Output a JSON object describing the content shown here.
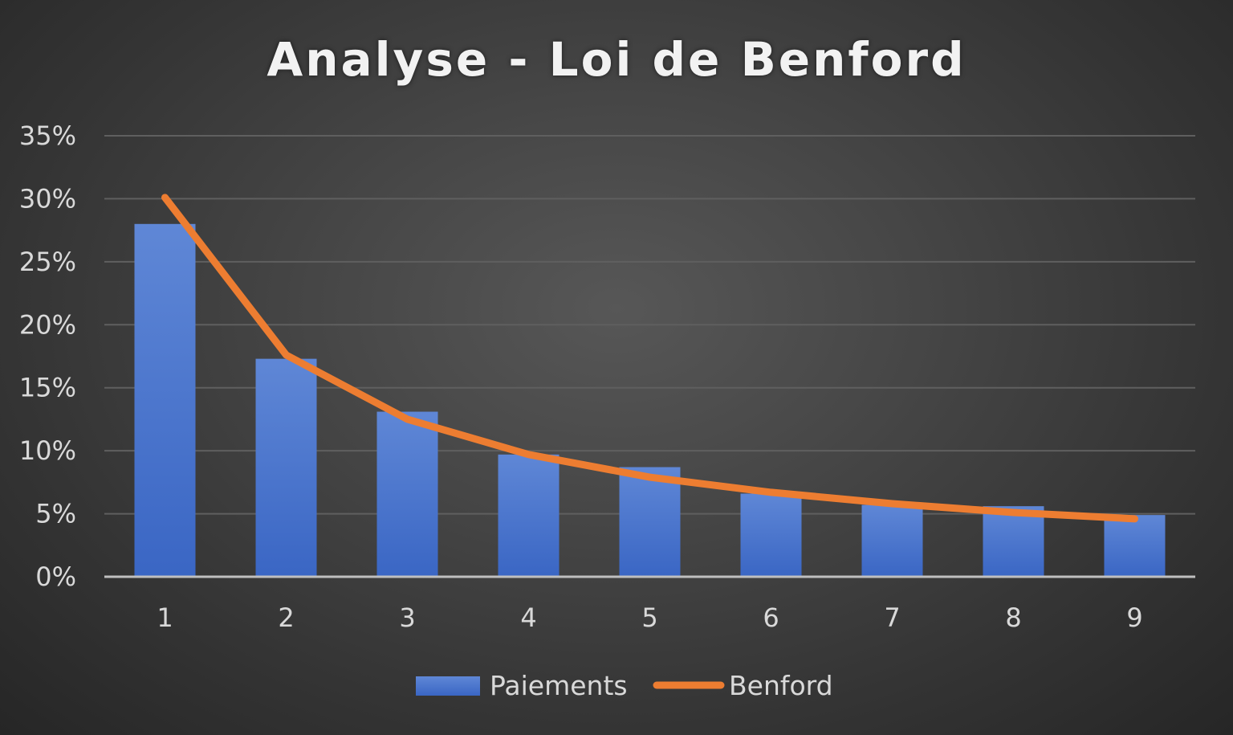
{
  "chart_data": {
    "type": "bar",
    "title": "Analyse - Loi de Benford",
    "categories": [
      "1",
      "2",
      "3",
      "4",
      "5",
      "6",
      "7",
      "8",
      "9"
    ],
    "series": [
      {
        "name": "Paiements",
        "type": "bar",
        "values": [
          0.28,
          0.173,
          0.131,
          0.097,
          0.087,
          0.066,
          0.057,
          0.056,
          0.049
        ],
        "color": "#4472c4"
      },
      {
        "name": "Benford",
        "type": "line",
        "values": [
          0.301,
          0.176,
          0.125,
          0.097,
          0.079,
          0.067,
          0.058,
          0.051,
          0.046
        ],
        "color": "#ed7d31"
      }
    ],
    "ylim": [
      0,
      0.35
    ],
    "yticks": [
      0,
      0.05,
      0.1,
      0.15,
      0.2,
      0.25,
      0.3,
      0.35
    ],
    "ytick_labels": [
      "0%",
      "5%",
      "10%",
      "15%",
      "20%",
      "25%",
      "30%",
      "35%"
    ],
    "grid": true,
    "legend_position": "bottom",
    "background": "dark"
  }
}
